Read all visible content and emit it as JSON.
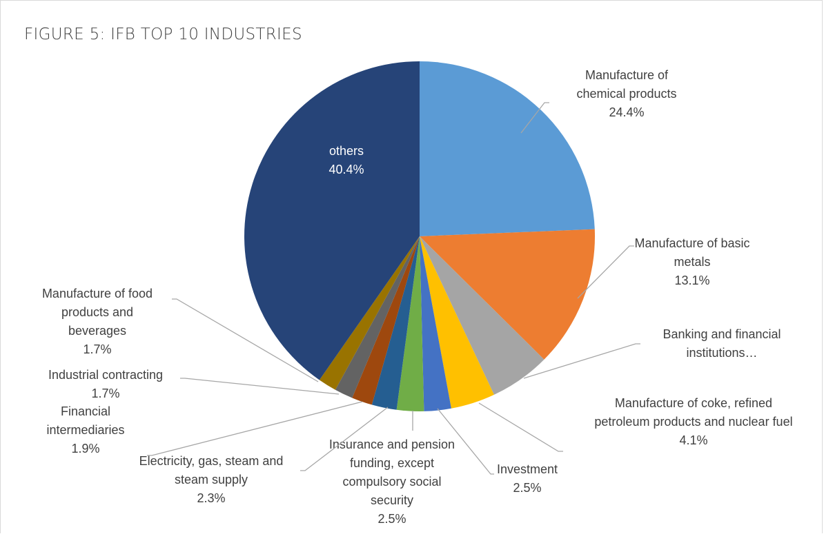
{
  "chart_data": {
    "type": "pie",
    "title": "FIGURE 5: IFB TOP 10 INDUSTRIES",
    "slices": [
      {
        "label": "Manufacture of chemical products",
        "value": 24.4,
        "display": "24.4%",
        "color": "#5b9bd5"
      },
      {
        "label": "Manufacture of basic metals",
        "value": 13.1,
        "display": "13.1%",
        "color": "#ed7d31"
      },
      {
        "label": "Banking and financial institutions…",
        "value": 5.6,
        "display": "",
        "color": "#a5a5a5"
      },
      {
        "label": "Manufacture of coke, refined petroleum products and nuclear fuel",
        "value": 4.1,
        "display": "4.1%",
        "color": "#ffc000"
      },
      {
        "label": "Investment",
        "value": 2.5,
        "display": "2.5%",
        "color": "#4472c4"
      },
      {
        "label": "Insurance and pension funding, except compulsory social security",
        "value": 2.5,
        "display": "2.5%",
        "color": "#70ad47"
      },
      {
        "label": "Electricity, gas, steam and steam supply",
        "value": 2.3,
        "display": "2.3%",
        "color": "#255e91"
      },
      {
        "label": "Financial intermediaries",
        "value": 1.9,
        "display": "1.9%",
        "color": "#9e480e"
      },
      {
        "label": "Industrial contracting",
        "value": 1.7,
        "display": "1.7%",
        "color": "#636363"
      },
      {
        "label": "Manufacture of food products and beverages",
        "value": 1.7,
        "display": "1.7%",
        "color": "#997300"
      },
      {
        "label": "others",
        "value": 40.4,
        "display": "40.4%",
        "color": "#264478"
      }
    ],
    "label_lines": [
      [
        "Manufacture of",
        "chemical products",
        "24.4%"
      ],
      [
        "Manufacture of basic",
        "metals",
        "13.1%"
      ],
      [
        "Banking and financial",
        "institutions…"
      ],
      [
        "Manufacture of coke, refined",
        "petroleum products and nuclear fuel",
        "4.1%"
      ],
      [
        "Investment",
        "2.5%"
      ],
      [
        "Insurance and pension",
        "funding, except",
        "compulsory social",
        "security",
        "2.5%"
      ],
      [
        "Electricity, gas, steam and",
        "steam supply",
        "2.3%"
      ],
      [
        "Financial",
        "intermediaries",
        "1.9%"
      ],
      [
        "Industrial contracting",
        "1.7%"
      ],
      [
        "Manufacture of food",
        "products and",
        "beverages",
        "1.7%"
      ],
      [
        "others",
        "40.4%"
      ]
    ]
  }
}
